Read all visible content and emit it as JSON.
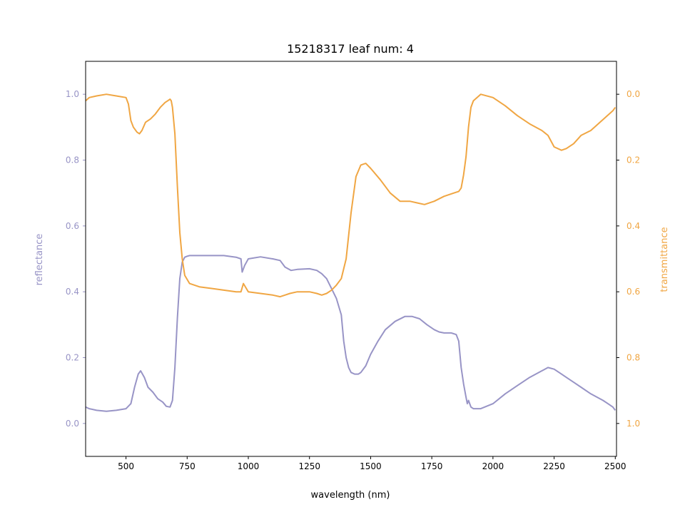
{
  "chart_data": {
    "type": "line",
    "title": "15218317 leaf num: 4",
    "xlabel": "wavelength (nm)",
    "ylabel_left": "reflectance",
    "ylabel_right": "transmittance",
    "xlim": [
      335,
      2505
    ],
    "ylim_left": [
      -0.1,
      1.1
    ],
    "ylim_right": [
      1.1,
      -0.1
    ],
    "right_axis_inverted": true,
    "grid": false,
    "x_ticks": [
      500,
      750,
      1000,
      1250,
      1500,
      1750,
      2000,
      2250,
      2500
    ],
    "y_ticks_left": [
      0.0,
      0.2,
      0.4,
      0.6,
      0.8,
      1.0
    ],
    "y_ticks_right": [
      0.0,
      0.2,
      0.4,
      0.6,
      0.8,
      1.0
    ],
    "colors": {
      "reflectance": "#9894c6",
      "transmittance": "#f0a643",
      "axis": "#000000"
    },
    "series": [
      {
        "name": "reflectance",
        "axis": "left",
        "x": [
          335,
          350,
          380,
          420,
          460,
          500,
          520,
          535,
          550,
          560,
          575,
          590,
          610,
          630,
          650,
          665,
          680,
          690,
          700,
          710,
          720,
          730,
          740,
          750,
          760,
          780,
          800,
          850,
          900,
          950,
          970,
          975,
          985,
          1000,
          1050,
          1100,
          1130,
          1150,
          1175,
          1200,
          1250,
          1280,
          1300,
          1320,
          1340,
          1360,
          1380,
          1390,
          1400,
          1410,
          1420,
          1435,
          1450,
          1460,
          1480,
          1500,
          1530,
          1560,
          1600,
          1640,
          1670,
          1700,
          1730,
          1760,
          1780,
          1800,
          1830,
          1850,
          1860,
          1870,
          1880,
          1890,
          1895,
          1900,
          1910,
          1920,
          1950,
          2000,
          2050,
          2100,
          2150,
          2200,
          2225,
          2250,
          2280,
          2300,
          2330,
          2360,
          2400,
          2450,
          2470,
          2490,
          2500
        ],
        "y": [
          0.05,
          0.045,
          0.04,
          0.037,
          0.04,
          0.045,
          0.06,
          0.11,
          0.15,
          0.16,
          0.14,
          0.11,
          0.095,
          0.075,
          0.065,
          0.052,
          0.05,
          0.07,
          0.17,
          0.32,
          0.44,
          0.49,
          0.505,
          0.508,
          0.51,
          0.51,
          0.51,
          0.51,
          0.51,
          0.505,
          0.5,
          0.46,
          0.48,
          0.5,
          0.506,
          0.5,
          0.495,
          0.475,
          0.465,
          0.468,
          0.47,
          0.465,
          0.455,
          0.44,
          0.41,
          0.38,
          0.33,
          0.25,
          0.2,
          0.17,
          0.155,
          0.15,
          0.15,
          0.155,
          0.175,
          0.21,
          0.25,
          0.285,
          0.31,
          0.325,
          0.325,
          0.318,
          0.3,
          0.285,
          0.278,
          0.275,
          0.275,
          0.27,
          0.25,
          0.17,
          0.12,
          0.08,
          0.06,
          0.07,
          0.05,
          0.045,
          0.045,
          0.06,
          0.09,
          0.115,
          0.14,
          0.16,
          0.17,
          0.165,
          0.15,
          0.14,
          0.125,
          0.11,
          0.09,
          0.07,
          0.06,
          0.05,
          0.04
        ]
      },
      {
        "name": "transmittance",
        "axis": "right",
        "x": [
          335,
          350,
          380,
          420,
          460,
          500,
          510,
          520,
          530,
          545,
          555,
          565,
          580,
          600,
          620,
          640,
          660,
          670,
          680,
          685,
          690,
          700,
          710,
          720,
          730,
          740,
          760,
          800,
          850,
          900,
          950,
          970,
          980,
          1000,
          1050,
          1100,
          1130,
          1150,
          1170,
          1200,
          1250,
          1280,
          1300,
          1320,
          1340,
          1360,
          1380,
          1400,
          1420,
          1440,
          1460,
          1480,
          1500,
          1540,
          1580,
          1620,
          1660,
          1690,
          1720,
          1760,
          1800,
          1840,
          1860,
          1870,
          1880,
          1890,
          1900,
          1910,
          1920,
          1950,
          2000,
          2050,
          2100,
          2150,
          2200,
          2225,
          2250,
          2280,
          2300,
          2330,
          2360,
          2400,
          2430,
          2460,
          2490,
          2500
        ],
        "y": [
          0.02,
          0.01,
          0.005,
          0.0,
          0.005,
          0.01,
          0.03,
          0.08,
          0.1,
          0.115,
          0.12,
          0.11,
          0.085,
          0.075,
          0.06,
          0.04,
          0.025,
          0.02,
          0.015,
          0.02,
          0.04,
          0.12,
          0.28,
          0.42,
          0.5,
          0.55,
          0.575,
          0.585,
          0.59,
          0.595,
          0.6,
          0.6,
          0.575,
          0.6,
          0.605,
          0.61,
          0.615,
          0.61,
          0.605,
          0.6,
          0.6,
          0.605,
          0.61,
          0.605,
          0.595,
          0.58,
          0.56,
          0.5,
          0.36,
          0.25,
          0.215,
          0.21,
          0.225,
          0.26,
          0.3,
          0.325,
          0.325,
          0.33,
          0.335,
          0.325,
          0.31,
          0.3,
          0.295,
          0.285,
          0.245,
          0.19,
          0.1,
          0.04,
          0.02,
          0.0,
          0.01,
          0.035,
          0.065,
          0.09,
          0.11,
          0.125,
          0.16,
          0.17,
          0.165,
          0.15,
          0.125,
          0.11,
          0.09,
          0.07,
          0.05,
          0.04
        ]
      }
    ]
  }
}
